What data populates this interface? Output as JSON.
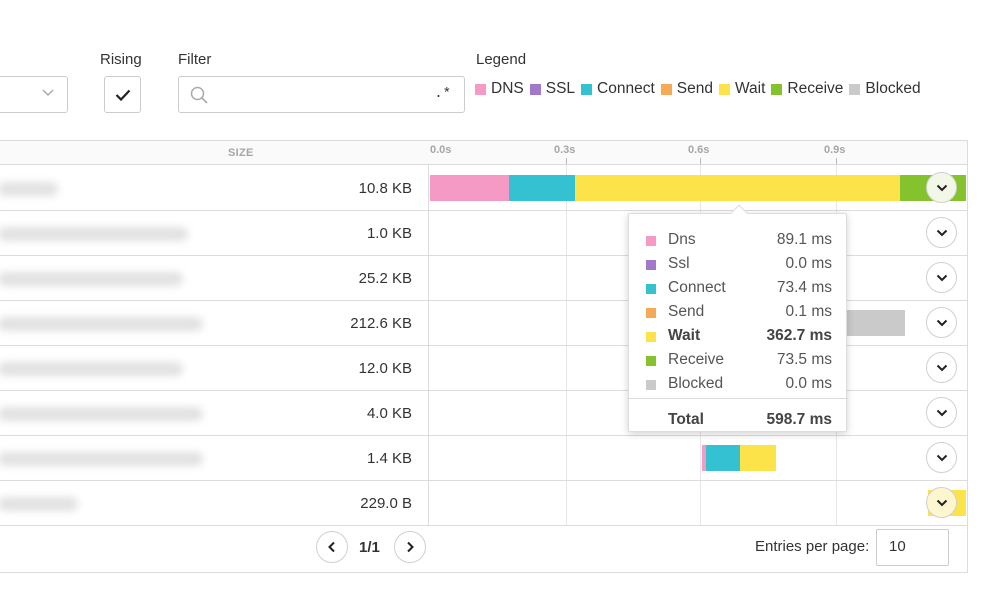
{
  "controls": {
    "rising_label": "Rising",
    "rising_checked": true,
    "filter_label": "Filter",
    "filter_value": "",
    "filter_placeholder": "",
    "filter_regex_indicator": ".*",
    "legend_label": "Legend"
  },
  "legend": [
    {
      "label": "DNS",
      "color": "#f59ac5"
    },
    {
      "label": "SSL",
      "color": "#a278c8"
    },
    {
      "label": "Connect",
      "color": "#34c2d2"
    },
    {
      "label": "Send",
      "color": "#f5ab55"
    },
    {
      "label": "Wait",
      "color": "#fde34a"
    },
    {
      "label": "Receive",
      "color": "#84c22e"
    },
    {
      "label": "Blocked",
      "color": "#cacaca"
    }
  ],
  "table": {
    "size_header": "SIZE",
    "ticks": [
      "0.0s",
      "0.3s",
      "0.6s",
      "0.9s"
    ],
    "rows": [
      {
        "size": "10.8 KB"
      },
      {
        "size": "1.0 KB"
      },
      {
        "size": "25.2 KB"
      },
      {
        "size": "212.6 KB"
      },
      {
        "size": "12.0 KB"
      },
      {
        "size": "4.0 KB"
      },
      {
        "size": "1.4 KB"
      },
      {
        "size": "229.0 B"
      }
    ]
  },
  "tooltip": {
    "rows": [
      {
        "label": "Dns",
        "value": "89.1 ms",
        "color": "#f59ac5"
      },
      {
        "label": "Ssl",
        "value": "0.0 ms",
        "color": "#a278c8"
      },
      {
        "label": "Connect",
        "value": "73.4 ms",
        "color": "#34c2d2"
      },
      {
        "label": "Send",
        "value": "0.1 ms",
        "color": "#f5ab55"
      },
      {
        "label": "Wait",
        "value": "362.7 ms",
        "color": "#fde34a"
      },
      {
        "label": "Receive",
        "value": "73.5 ms",
        "color": "#84c22e"
      },
      {
        "label": "Blocked",
        "value": "0.0 ms",
        "color": "#cacaca"
      }
    ],
    "total_label": "Total",
    "total_value": "598.7 ms"
  },
  "pagination": {
    "indicator": "1/1",
    "entries_label": "Entries per page:",
    "entries_value": "10"
  }
}
